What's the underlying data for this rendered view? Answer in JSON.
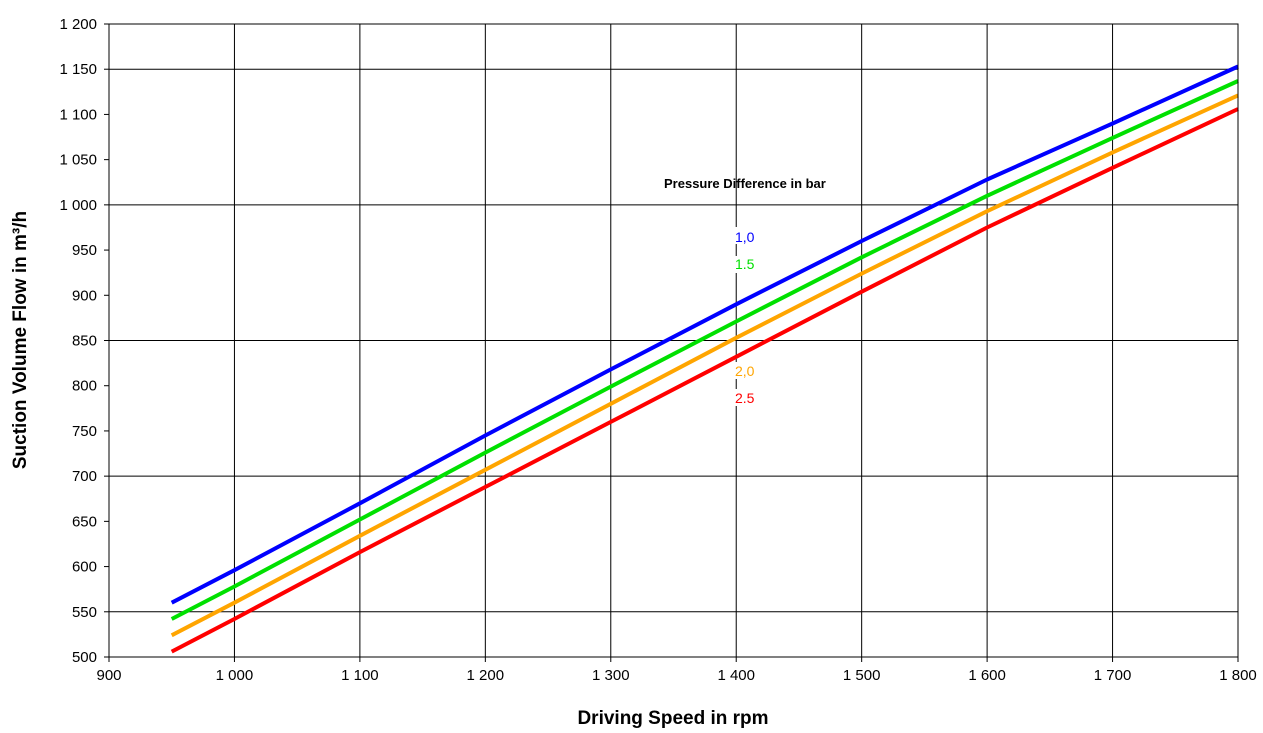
{
  "chart_data": {
    "type": "line",
    "title": "",
    "xlabel": "Driving Speed in rpm",
    "ylabel": "Suction Volume Flow in m³/h",
    "xlim": [
      900,
      1800
    ],
    "ylim": [
      500,
      1200
    ],
    "xticks": [
      900,
      1000,
      1100,
      1200,
      1300,
      1400,
      1500,
      1600,
      1700,
      1800
    ],
    "xtick_labels": [
      "900",
      "1 000",
      "1 100",
      "1 200",
      "1 300",
      "1 400",
      "1 500",
      "1 600",
      "1 700",
      "1 800"
    ],
    "yticks": [
      500,
      550,
      600,
      650,
      700,
      750,
      800,
      850,
      900,
      950,
      1000,
      1050,
      1100,
      1150,
      1200
    ],
    "ytick_labels": [
      "500",
      "550",
      "600",
      "650",
      "700",
      "750",
      "800",
      "850",
      "900",
      "950",
      "1 000",
      "1 050",
      "1 100",
      "1 150",
      "1 200"
    ],
    "grid": true,
    "legend_title": "Pressure Difference in bar",
    "series": [
      {
        "name": "1,0",
        "color": "#0000ff",
        "x": [
          950,
          1000,
          1100,
          1200,
          1300,
          1400,
          1500,
          1600,
          1700,
          1800
        ],
        "y": [
          560,
          596,
          670,
          745,
          818,
          890,
          960,
          1028,
          1090,
          1153
        ]
      },
      {
        "name": "1.5",
        "color": "#00e000",
        "x": [
          950,
          1000,
          1100,
          1200,
          1300,
          1400,
          1500,
          1600,
          1700,
          1800
        ],
        "y": [
          542,
          578,
          652,
          726,
          799,
          871,
          942,
          1010,
          1074,
          1137
        ]
      },
      {
        "name": "2,0",
        "color": "#ffa500",
        "x": [
          950,
          1000,
          1100,
          1200,
          1300,
          1400,
          1500,
          1600,
          1700,
          1800
        ],
        "y": [
          524,
          560,
          634,
          707,
          780,
          853,
          924,
          993,
          1058,
          1121
        ]
      },
      {
        "name": "2.5",
        "color": "#ff0000",
        "x": [
          950,
          1000,
          1100,
          1200,
          1300,
          1400,
          1500,
          1600,
          1700,
          1800
        ],
        "y": [
          506,
          542,
          616,
          688,
          760,
          832,
          904,
          975,
          1041,
          1106
        ]
      }
    ]
  }
}
